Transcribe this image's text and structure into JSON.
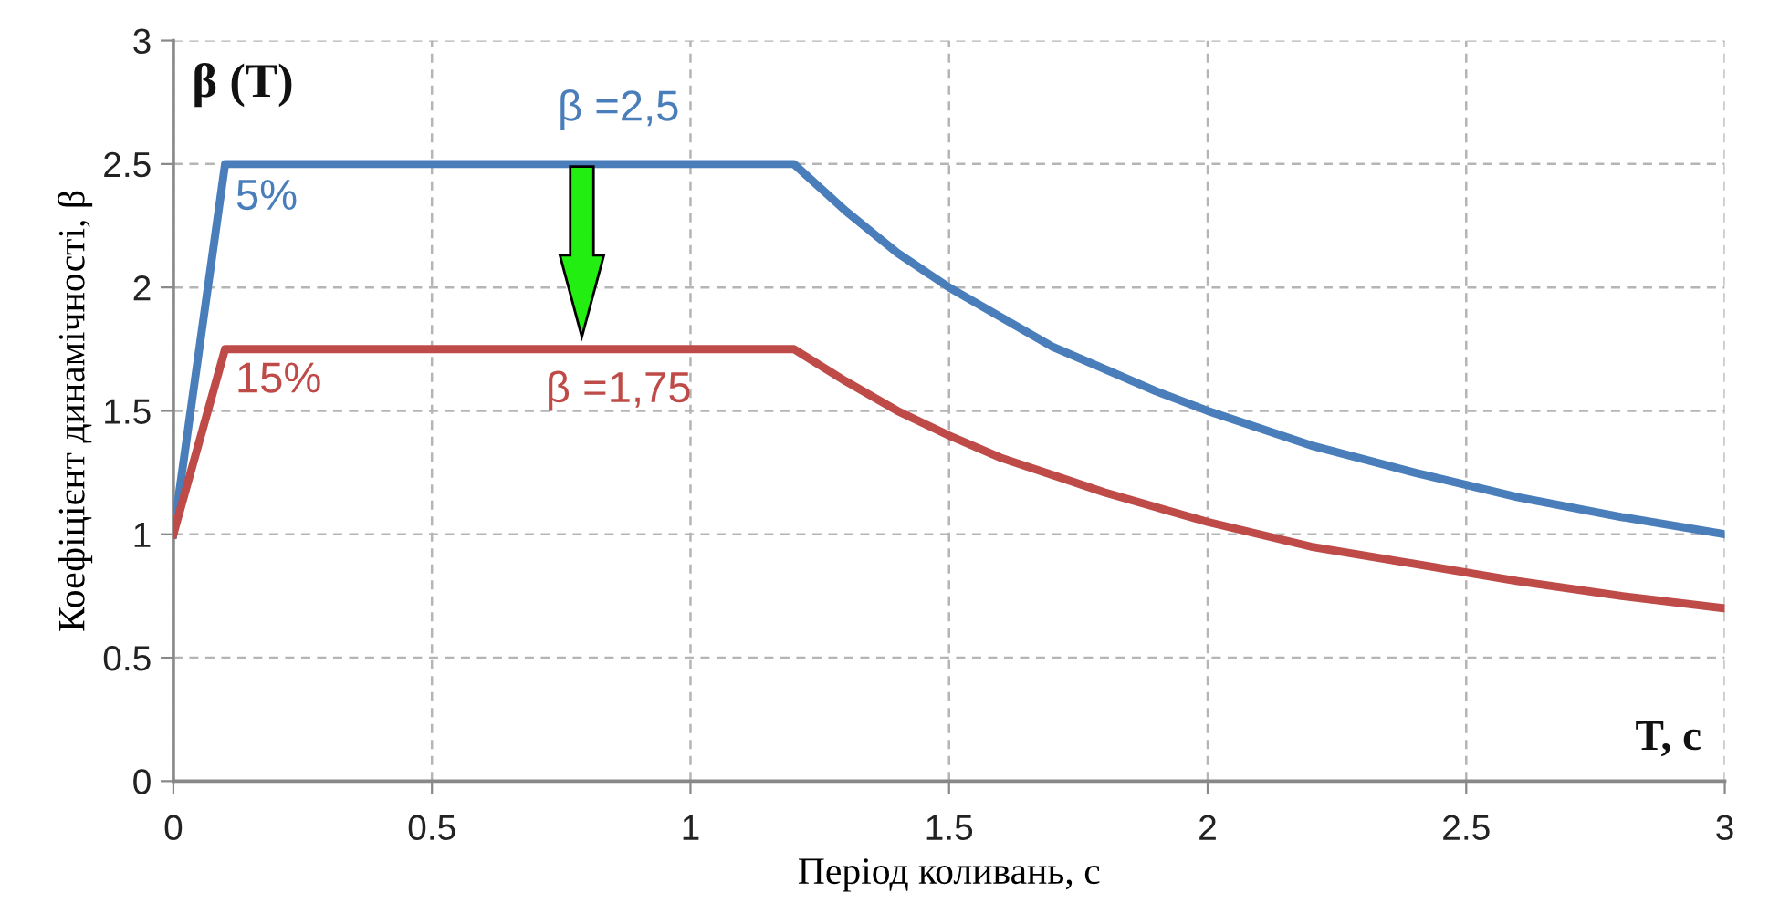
{
  "chart_data": {
    "type": "line",
    "xlabel": "Період коливань, c",
    "ylabel": "Коефіцієнт динамічності, β",
    "series": [
      {
        "color": "#4a7ebb",
        "x": [
          0,
          0.1,
          1.2,
          1.3,
          1.4,
          1.5,
          1.6,
          1.7,
          1.8,
          1.9,
          2.0,
          2.2,
          2.4,
          2.6,
          2.8,
          3.0
        ],
        "values": [
          1.0,
          2.5,
          2.5,
          2.31,
          2.14,
          2.0,
          1.88,
          1.76,
          1.67,
          1.58,
          1.5,
          1.36,
          1.25,
          1.15,
          1.07,
          1.0
        ]
      },
      {
        "color": "#be4b48",
        "x": [
          0,
          0.1,
          1.2,
          1.3,
          1.4,
          1.5,
          1.6,
          1.7,
          1.8,
          1.9,
          2.0,
          2.2,
          2.4,
          2.6,
          2.8,
          3.0
        ],
        "values": [
          1.0,
          1.75,
          1.75,
          1.62,
          1.5,
          1.4,
          1.31,
          1.24,
          1.17,
          1.11,
          1.05,
          0.95,
          0.88,
          0.81,
          0.75,
          0.7
        ]
      }
    ],
    "xlim": [
      0,
      3
    ],
    "ylim": [
      0,
      3
    ],
    "xticks": [
      0,
      0.5,
      1,
      1.5,
      2,
      2.5,
      3
    ],
    "yticks": [
      0,
      0.5,
      1,
      1.5,
      2,
      2.5,
      3
    ],
    "grid": true,
    "line_style": "solid",
    "marker": "none",
    "annotations": [
      "β (T)",
      "T, c",
      "β =2,5",
      "5%",
      "15%",
      "β =1,75"
    ]
  }
}
